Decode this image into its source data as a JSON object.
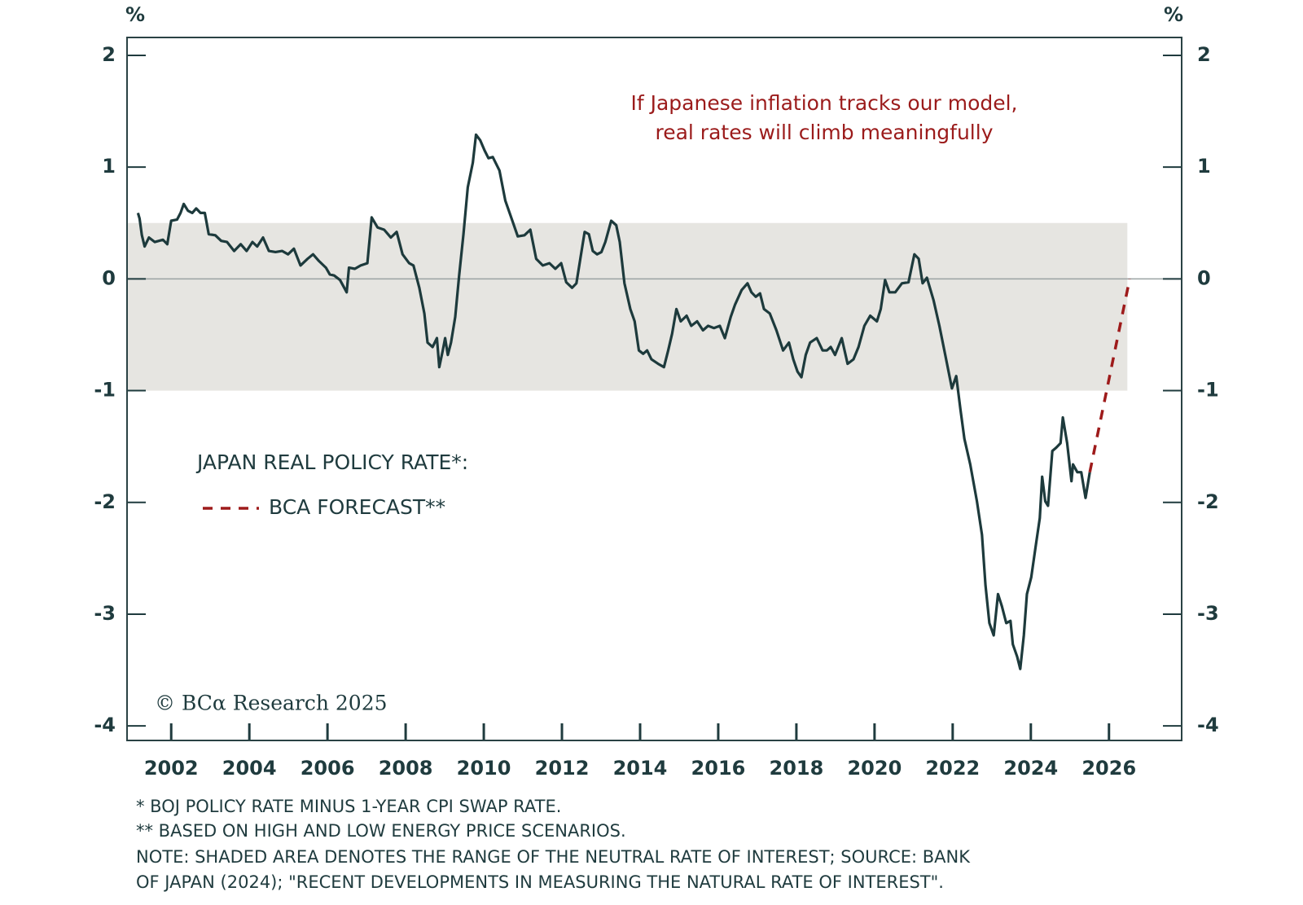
{
  "chart_data": {
    "type": "line",
    "y_unit": "%",
    "y2_unit": "%",
    "annotation": [
      "If Japanese inflation tracks our model,",
      "real rates will climb meaningfully"
    ],
    "legend_title": "JAPAN REAL POLICY RATE*:",
    "copyright": "© BCα Research 2025",
    "footnotes": [
      "* BOJ POLICY RATE MINUS  1-YEAR CPI SWAP RATE.",
      "** BASED ON HIGH AND LOW ENERGY PRICE SCENARIOS.",
      "NOTE: SHADED AREA DENOTES THE RANGE OF THE NEUTRAL RATE OF INTEREST; SOURCE: BANK",
      "OF JAPAN (2024); \"RECENT DEVELOPMENTS IN MEASURING THE NATURAL RATE OF INTEREST\"."
    ],
    "xlim": [
      2000.87,
      2027.86
    ],
    "xticks": [
      2002,
      2004,
      2006,
      2008,
      2010,
      2012,
      2014,
      2016,
      2018,
      2020,
      2022,
      2024,
      2026
    ],
    "ylim": [
      -4.13,
      2.16
    ],
    "yticks": [
      2,
      1,
      0,
      -1,
      -2,
      -3,
      -4
    ],
    "y2lim": [
      -4.13,
      2.16
    ],
    "y2ticks": [
      2,
      1,
      0,
      -1,
      -2,
      -3,
      -4
    ],
    "shaded_region": {
      "xlim": [
        2000.87,
        2026.47
      ],
      "ylim": [
        -1,
        0.5
      ],
      "color": "#e6e5e1"
    },
    "reference_line": 0,
    "series": [
      {
        "color": "#1d3a3c",
        "dashed": false,
        "x": [
          2001.15,
          2001.19,
          2001.25,
          2001.32,
          2001.43,
          2001.58,
          2001.79,
          2001.9,
          2002.0,
          2002.15,
          2002.24,
          2002.32,
          2002.43,
          2002.54,
          2002.64,
          2002.75,
          2002.86,
          2002.96,
          2003.13,
          2003.28,
          2003.43,
          2003.61,
          2003.78,
          2003.93,
          2004.08,
          2004.2,
          2004.35,
          2004.5,
          2004.67,
          2004.84,
          2004.99,
          2005.14,
          2005.31,
          2005.49,
          2005.63,
          2005.78,
          2005.96,
          2006.06,
          2006.17,
          2006.32,
          2006.49,
          2006.55,
          2006.7,
          2006.85,
          2007.02,
          2007.13,
          2007.28,
          2007.45,
          2007.62,
          2007.77,
          2007.92,
          2008.09,
          2008.2,
          2008.35,
          2008.48,
          2008.56,
          2008.69,
          2008.8,
          2008.86,
          2008.95,
          2009.01,
          2009.08,
          2009.16,
          2009.27,
          2009.37,
          2009.48,
          2009.59,
          2009.72,
          2009.8,
          2009.91,
          2010.02,
          2010.12,
          2010.23,
          2010.4,
          2010.55,
          2010.7,
          2010.87,
          2011.04,
          2011.19,
          2011.34,
          2011.51,
          2011.68,
          2011.83,
          2011.98,
          2012.11,
          2012.26,
          2012.37,
          2012.47,
          2012.58,
          2012.69,
          2012.79,
          2012.9,
          2013.01,
          2013.11,
          2013.26,
          2013.39,
          2013.48,
          2013.6,
          2013.75,
          2013.86,
          2013.97,
          2014.08,
          2014.18,
          2014.29,
          2014.46,
          2014.61,
          2014.72,
          2014.82,
          2014.93,
          2015.04,
          2015.19,
          2015.31,
          2015.46,
          2015.61,
          2015.74,
          2015.89,
          2016.04,
          2016.17,
          2016.32,
          2016.43,
          2016.6,
          2016.75,
          2016.85,
          2016.96,
          2017.07,
          2017.17,
          2017.32,
          2017.49,
          2017.66,
          2017.81,
          2017.92,
          2018.03,
          2018.13,
          2018.24,
          2018.35,
          2018.52,
          2018.67,
          2018.78,
          2018.88,
          2018.99,
          2019.16,
          2019.31,
          2019.46,
          2019.59,
          2019.74,
          2019.89,
          2020.06,
          2020.16,
          2020.27,
          2020.38,
          2020.53,
          2020.7,
          2020.87,
          2021.02,
          2021.13,
          2021.23,
          2021.34,
          2021.51,
          2021.66,
          2021.81,
          2021.98,
          2022.09,
          2022.2,
          2022.3,
          2022.45,
          2022.62,
          2022.75,
          2022.84,
          2022.94,
          2023.05,
          2023.16,
          2023.26,
          2023.37,
          2023.48,
          2023.54,
          2023.65,
          2023.73,
          2023.82,
          2023.9,
          2024.01,
          2024.12,
          2024.23,
          2024.29,
          2024.37,
          2024.44,
          2024.55,
          2024.65,
          2024.76,
          2024.82,
          2024.93,
          2025.04,
          2025.08,
          2025.19,
          2025.29,
          2025.4,
          2025.51
        ],
        "values": [
          0.59,
          0.54,
          0.39,
          0.29,
          0.37,
          0.33,
          0.35,
          0.31,
          0.52,
          0.53,
          0.59,
          0.67,
          0.61,
          0.59,
          0.63,
          0.59,
          0.59,
          0.4,
          0.39,
          0.34,
          0.33,
          0.25,
          0.31,
          0.25,
          0.33,
          0.29,
          0.37,
          0.25,
          0.24,
          0.25,
          0.22,
          0.27,
          0.12,
          0.18,
          0.22,
          0.16,
          0.1,
          0.04,
          0.03,
          -0.01,
          -0.12,
          0.1,
          0.09,
          0.12,
          0.14,
          0.55,
          0.46,
          0.44,
          0.37,
          0.42,
          0.22,
          0.14,
          0.12,
          -0.08,
          -0.31,
          -0.57,
          -0.61,
          -0.53,
          -0.79,
          -0.64,
          -0.53,
          -0.68,
          -0.57,
          -0.34,
          0.03,
          0.4,
          0.82,
          1.04,
          1.29,
          1.24,
          1.15,
          1.08,
          1.09,
          0.97,
          0.7,
          0.55,
          0.38,
          0.39,
          0.44,
          0.18,
          0.12,
          0.14,
          0.09,
          0.14,
          -0.03,
          -0.08,
          -0.04,
          0.18,
          0.42,
          0.4,
          0.25,
          0.22,
          0.24,
          0.33,
          0.52,
          0.48,
          0.33,
          -0.04,
          -0.27,
          -0.38,
          -0.64,
          -0.67,
          -0.64,
          -0.72,
          -0.76,
          -0.79,
          -0.64,
          -0.49,
          -0.27,
          -0.38,
          -0.33,
          -0.42,
          -0.38,
          -0.46,
          -0.42,
          -0.44,
          -0.42,
          -0.53,
          -0.34,
          -0.23,
          -0.1,
          -0.04,
          -0.12,
          -0.16,
          -0.13,
          -0.27,
          -0.31,
          -0.46,
          -0.64,
          -0.57,
          -0.72,
          -0.83,
          -0.88,
          -0.68,
          -0.57,
          -0.53,
          -0.64,
          -0.64,
          -0.61,
          -0.68,
          -0.53,
          -0.76,
          -0.72,
          -0.61,
          -0.42,
          -0.33,
          -0.38,
          -0.27,
          -0.01,
          -0.12,
          -0.12,
          -0.04,
          -0.03,
          0.22,
          0.18,
          -0.04,
          0.01,
          -0.19,
          -0.42,
          -0.68,
          -0.98,
          -0.87,
          -1.17,
          -1.43,
          -1.66,
          -1.99,
          -2.29,
          -2.74,
          -3.08,
          -3.19,
          -2.82,
          -2.93,
          -3.08,
          -3.06,
          -3.27,
          -3.38,
          -3.49,
          -3.19,
          -2.82,
          -2.67,
          -2.4,
          -2.14,
          -1.77,
          -1.99,
          -2.03,
          -1.54,
          -1.51,
          -1.47,
          -1.24,
          -1.47,
          -1.81,
          -1.66,
          -1.73,
          -1.73,
          -1.96,
          -1.73
        ]
      },
      {
        "name": "BCA FORECAST**",
        "color": "#9e1b1b",
        "dashed": true,
        "x": [
          2025.51,
          2026.53
        ],
        "values": [
          -1.73,
          0
        ]
      }
    ]
  }
}
